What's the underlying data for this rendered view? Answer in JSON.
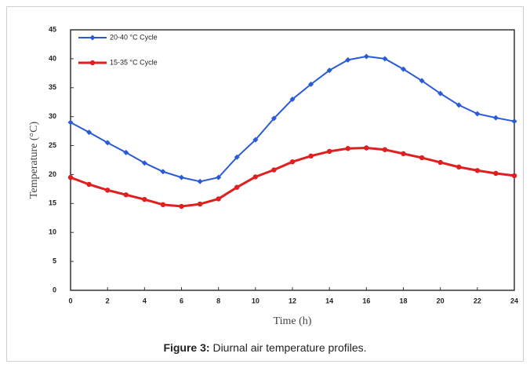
{
  "chart_data": {
    "type": "line",
    "x_label": "Time (h)",
    "y_label": "Temperature (°C)",
    "x": [
      0,
      1,
      2,
      3,
      4,
      5,
      6,
      7,
      8,
      9,
      10,
      11,
      12,
      13,
      14,
      15,
      16,
      17,
      18,
      19,
      20,
      21,
      22,
      23,
      24
    ],
    "series": [
      {
        "name": "20-40 °C Cycle",
        "color": "#2a5bd7",
        "marker": "diamond",
        "values": [
          29,
          27.3,
          25.5,
          23.8,
          22,
          20.5,
          19.5,
          18.8,
          19.5,
          23,
          26,
          29.7,
          33,
          35.6,
          38,
          39.8,
          40.4,
          40,
          38.2,
          36.2,
          34,
          32,
          30.5,
          29.8,
          29.2
        ]
      },
      {
        "name": "15-35 °C Cycle",
        "color": "#e02020",
        "marker": "circle",
        "values": [
          19.5,
          18.3,
          17.3,
          16.5,
          15.7,
          14.8,
          14.5,
          14.9,
          15.8,
          17.8,
          19.6,
          20.8,
          22.2,
          23.2,
          24,
          24.5,
          24.6,
          24.3,
          23.6,
          22.9,
          22.1,
          21.3,
          20.7,
          20.2,
          19.8
        ]
      }
    ],
    "xlim": [
      0,
      24
    ],
    "xticks": [
      0,
      2,
      4,
      6,
      8,
      10,
      12,
      14,
      16,
      18,
      20,
      22,
      24
    ],
    "ylim": [
      0,
      45
    ],
    "yticks": [
      0,
      5,
      10,
      15,
      20,
      25,
      30,
      35,
      40,
      45
    ],
    "grid": false,
    "legend": "upper left"
  },
  "caption": {
    "label": "Figure 3:",
    "text": " Diurnal air temperature profiles."
  }
}
